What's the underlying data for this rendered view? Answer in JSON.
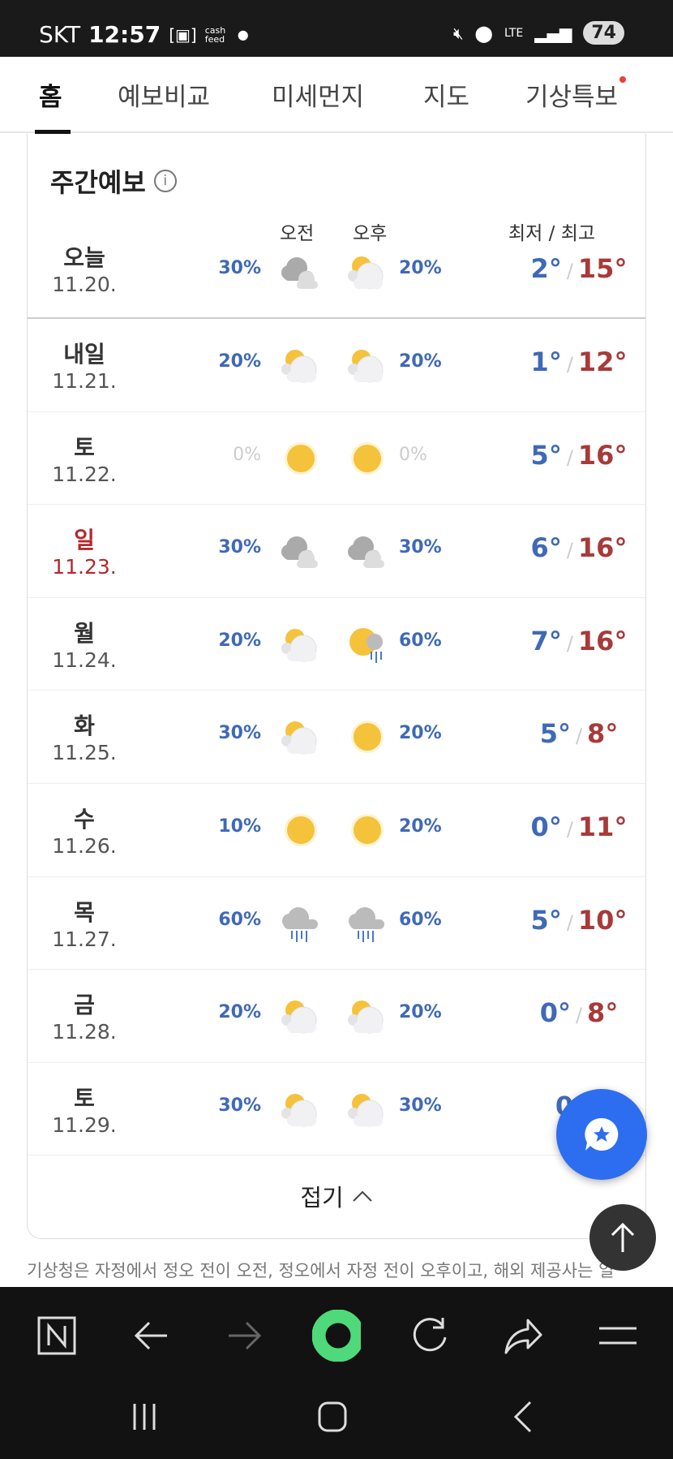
{
  "status": {
    "carrier": "SKT",
    "time": "12:57",
    "app_badge": "cash feed",
    "network": "LTE",
    "battery": "74"
  },
  "tabs": [
    {
      "label": "홈",
      "active": true
    },
    {
      "label": "예보비교"
    },
    {
      "label": "미세먼지"
    },
    {
      "label": "지도"
    },
    {
      "label": "기상특보",
      "alert_dot": true
    }
  ],
  "weekly": {
    "title": "주간예보",
    "am_label": "오전",
    "pm_label": "오후",
    "temp_header": "최저 / 최고",
    "days": [
      {
        "day": "오늘",
        "date": "11.20.",
        "am_pct": "30%",
        "am_icon": "cloudy",
        "pm_icon": "partly-cloudy",
        "pm_pct": "20%",
        "low": "2°",
        "high": "15°"
      },
      {
        "day": "내일",
        "date": "11.21.",
        "am_pct": "20%",
        "am_icon": "partly-cloudy",
        "pm_icon": "partly-cloudy",
        "pm_pct": "20%",
        "low": "1°",
        "high": "12°"
      },
      {
        "day": "토",
        "date": "11.22.",
        "am_pct": "0%",
        "am_icon": "sunny",
        "pm_icon": "sunny",
        "pm_pct": "0%",
        "low": "5°",
        "high": "16°"
      },
      {
        "day": "일",
        "date": "11.23.",
        "am_pct": "30%",
        "am_icon": "cloudy",
        "pm_icon": "cloudy",
        "pm_pct": "30%",
        "low": "6°",
        "high": "16°",
        "holiday": true
      },
      {
        "day": "월",
        "date": "11.24.",
        "am_pct": "20%",
        "am_icon": "partly-cloudy",
        "pm_icon": "sun-rain",
        "pm_pct": "60%",
        "low": "7°",
        "high": "16°"
      },
      {
        "day": "화",
        "date": "11.25.",
        "am_pct": "30%",
        "am_icon": "partly-cloudy",
        "pm_icon": "sunny",
        "pm_pct": "20%",
        "low": "5°",
        "high": "8°"
      },
      {
        "day": "수",
        "date": "11.26.",
        "am_pct": "10%",
        "am_icon": "sunny",
        "pm_icon": "sunny",
        "pm_pct": "20%",
        "low": "0°",
        "high": "11°"
      },
      {
        "day": "목",
        "date": "11.27.",
        "am_pct": "60%",
        "am_icon": "rain",
        "pm_icon": "rain",
        "pm_pct": "60%",
        "low": "5°",
        "high": "10°"
      },
      {
        "day": "금",
        "date": "11.28.",
        "am_pct": "20%",
        "am_icon": "partly-cloudy",
        "pm_icon": "partly-cloudy",
        "pm_pct": "20%",
        "low": "0°",
        "high": "8°"
      },
      {
        "day": "토",
        "date": "11.29.",
        "am_pct": "30%",
        "am_icon": "partly-cloudy",
        "pm_icon": "partly-cloudy",
        "pm_pct": "30%",
        "low": "0°",
        "high": ""
      }
    ],
    "fold_label": "접기"
  },
  "note": "기상청은 자정에서 정오 전이 오전, 정오에서 자정 전이 오후이고, 해외 제공사는 일",
  "colors": {
    "low": "#3f69b8",
    "high": "#a83a3a",
    "fab": "#2d6df0",
    "holiday": "#b3282d"
  }
}
